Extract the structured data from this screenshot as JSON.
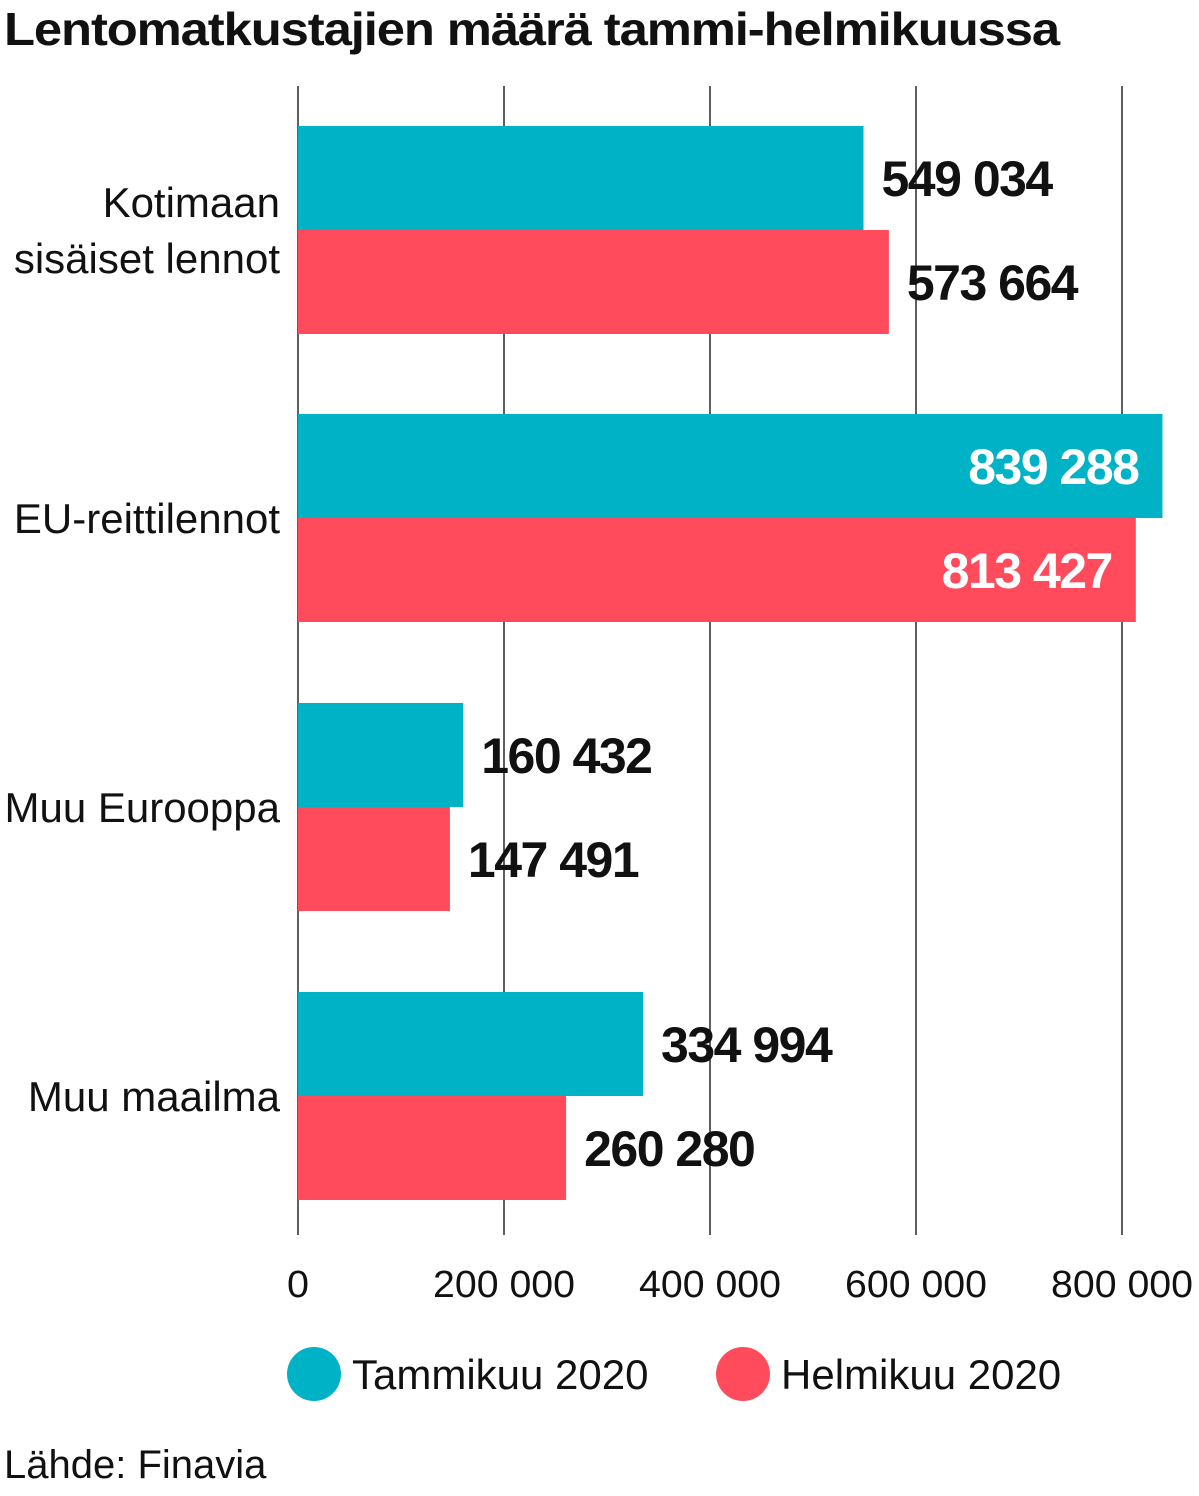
{
  "chart_data": {
    "type": "bar",
    "orientation": "horizontal",
    "title": "Lentomatkustajien määrä tammi-helmikuussa",
    "categories": [
      [
        "Kotimaan",
        "sisäiset lennot"
      ],
      [
        "EU-reittilennot"
      ],
      [
        "Muu Eurooppa"
      ],
      [
        "Muu maailma"
      ]
    ],
    "series": [
      {
        "name": "Tammikuu 2020",
        "color": "#00b2c6",
        "values": [
          549034,
          839288,
          160432,
          334994
        ],
        "labels": [
          "549 034",
          "839 288",
          "160 432",
          "334 994"
        ]
      },
      {
        "name": "Helmikuu 2020",
        "color": "#ff4b5c",
        "values": [
          573664,
          813427,
          147491,
          260280
        ],
        "labels": [
          "573 664",
          "813 427",
          "147 491",
          "260 280"
        ]
      }
    ],
    "xlim": [
      0,
      800000
    ],
    "xticks": [
      0,
      200000,
      400000,
      600000,
      800000
    ],
    "xtick_labels": [
      "0",
      "200 000",
      "400 000",
      "600 000",
      "800 000"
    ],
    "grid": true,
    "legend_position": "bottom",
    "source": "Lähde: Finavia"
  }
}
